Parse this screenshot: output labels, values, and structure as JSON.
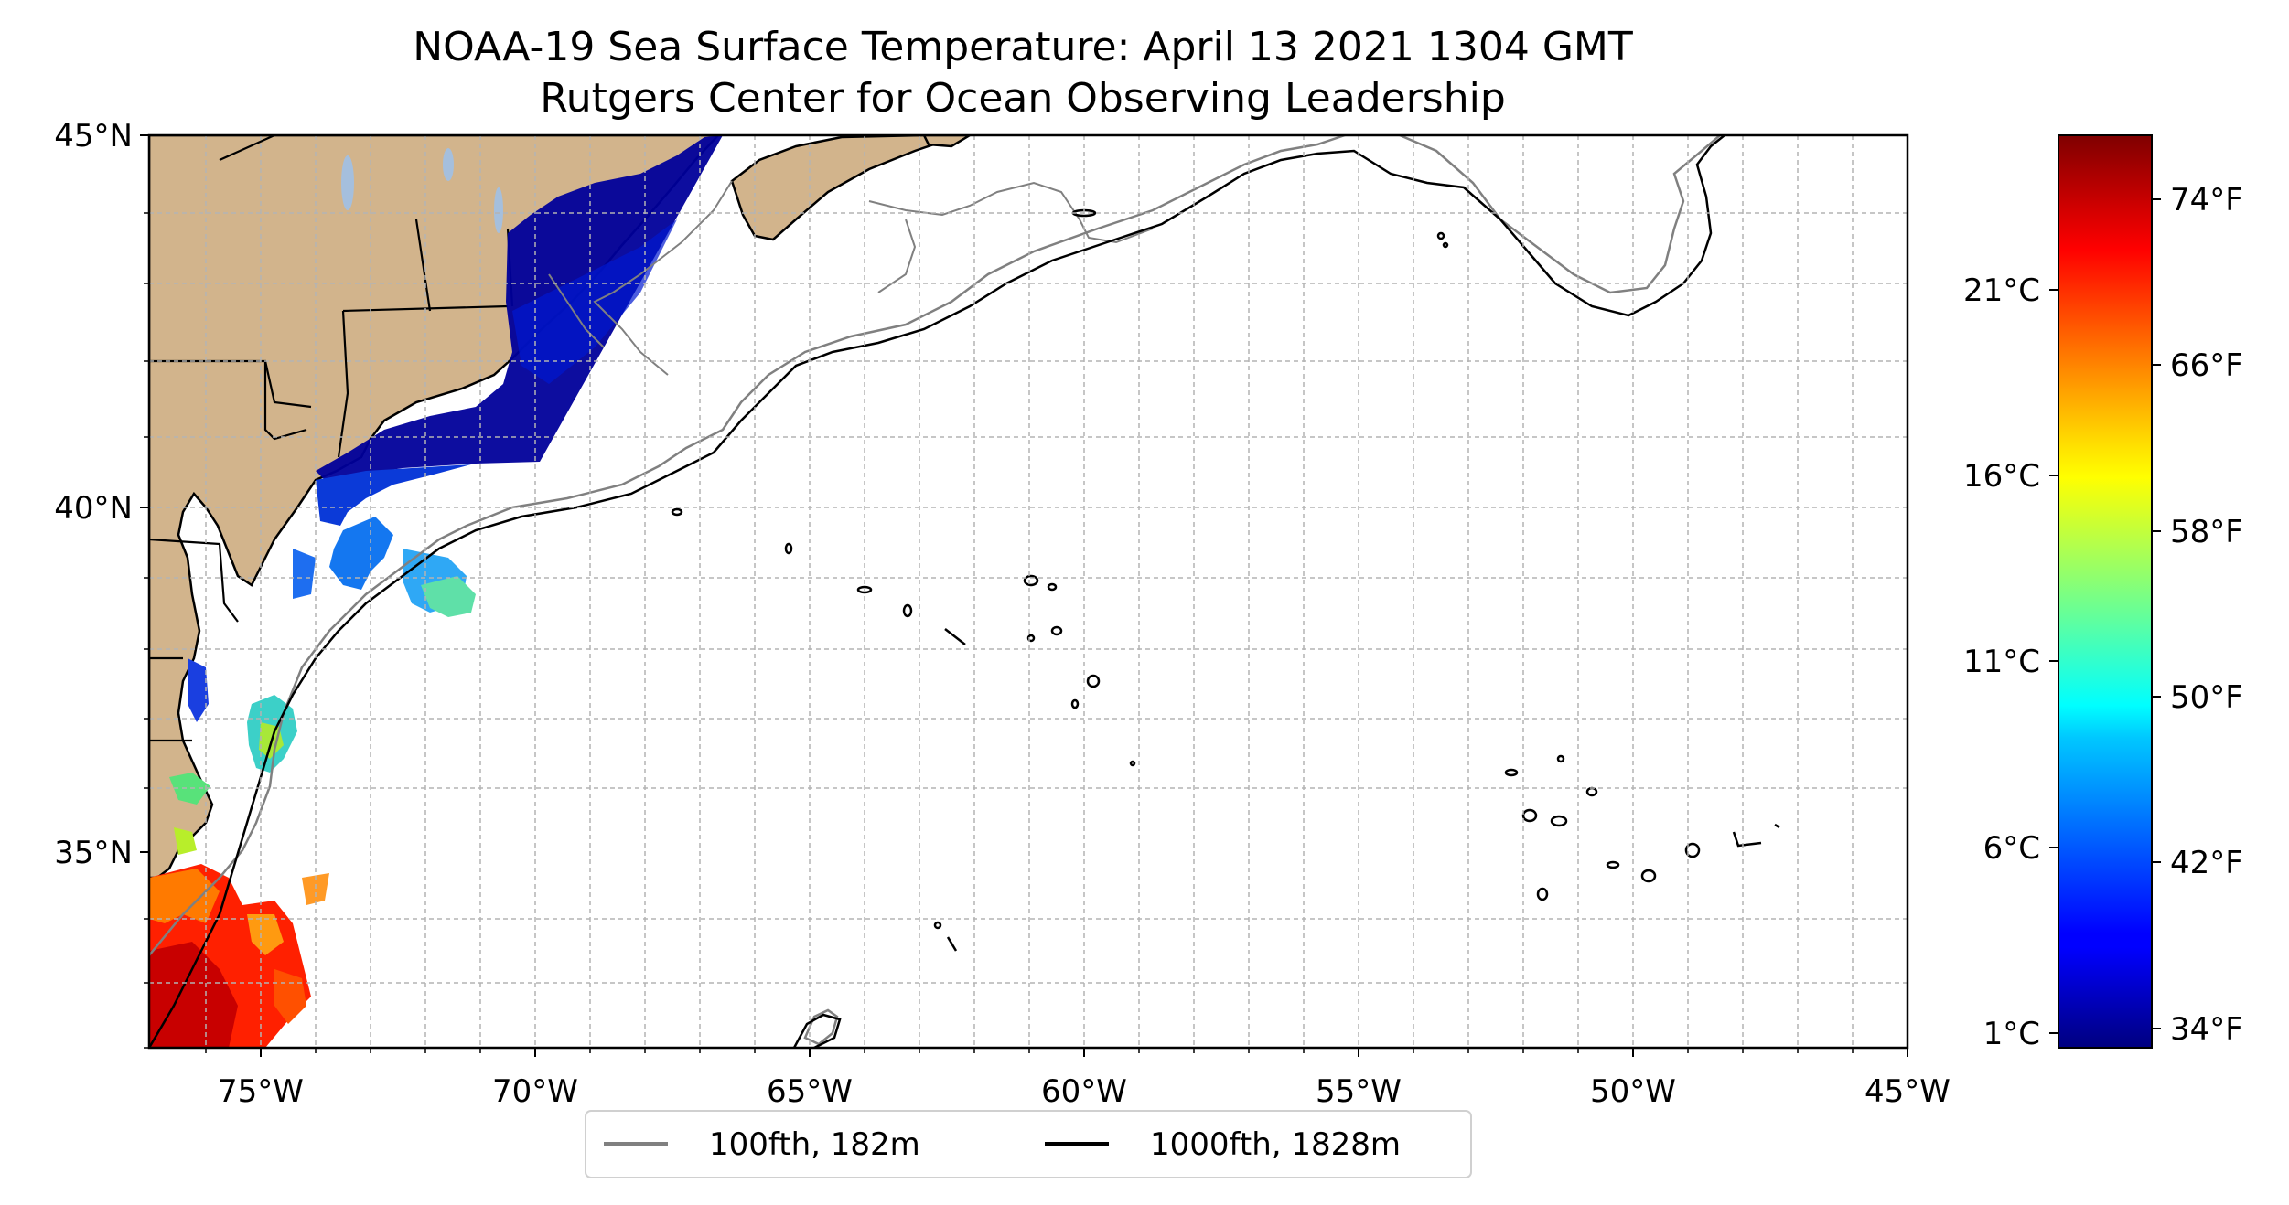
{
  "title": {
    "line1": "NOAA-19 Sea Surface Temperature: April 13 2021 1304 GMT",
    "line2": "Rutgers Center for Ocean Observing Leadership"
  },
  "map": {
    "lon_range": [
      -77,
      -45
    ],
    "lat_range": [
      32,
      45
    ],
    "lon_ticks": [
      "75°W",
      "70°W",
      "65°W",
      "60°W",
      "55°W",
      "50°W",
      "45°W"
    ],
    "lat_ticks": [
      "35°N",
      "40°N",
      "45°N"
    ],
    "gridlines": "dashed",
    "land_color": "#d2b48c",
    "water_color": "#ffffff"
  },
  "legend": {
    "placement": "bottom-center",
    "items": [
      {
        "label": "100fth, 182m",
        "color": "#808080"
      },
      {
        "label": "1000fth, 1828m",
        "color": "#000000"
      }
    ]
  },
  "colorbar": {
    "colormap": "jet",
    "celsius_ticks": [
      "1°C",
      "6°C",
      "11°C",
      "16°C",
      "21°C"
    ],
    "fahrenheit_ticks": [
      "34°F",
      "42°F",
      "50°F",
      "58°F",
      "66°F",
      "74°F"
    ],
    "range_f": [
      33,
      77
    ]
  }
}
